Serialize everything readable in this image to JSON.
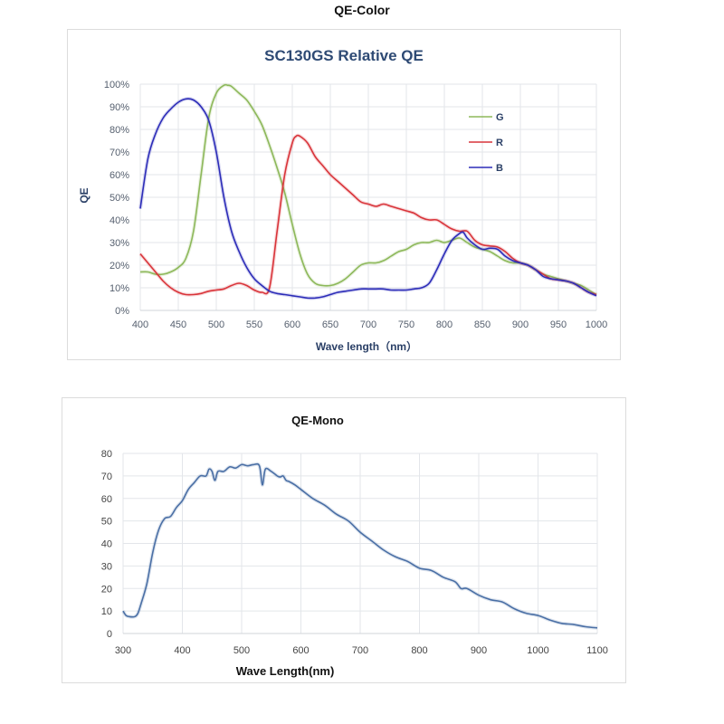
{
  "page": {
    "heading": "QE-Color"
  },
  "chart_data": [
    {
      "type": "line",
      "title": "SC130GS Relative QE",
      "xlabel": "Wave length（nm）",
      "ylabel": "QE",
      "xlim": [
        400,
        1000
      ],
      "ylim": [
        0,
        100
      ],
      "x_ticks": [
        "400",
        "450",
        "500",
        "550",
        "600",
        "650",
        "700",
        "750",
        "800",
        "850",
        "900",
        "950",
        "1000"
      ],
      "y_ticks": [
        "0%",
        "10%",
        "20%",
        "30%",
        "40%",
        "50%",
        "60%",
        "70%",
        "80%",
        "90%",
        "100%"
      ],
      "grid": true,
      "legend_position": "top-right",
      "series": [
        {
          "name": "G",
          "color": "#8db85a",
          "x": [
            400,
            410,
            420,
            430,
            440,
            450,
            460,
            470,
            480,
            490,
            500,
            510,
            515,
            520,
            530,
            540,
            550,
            560,
            570,
            580,
            590,
            600,
            610,
            620,
            630,
            640,
            650,
            660,
            670,
            680,
            690,
            700,
            710,
            720,
            730,
            740,
            750,
            760,
            770,
            780,
            790,
            800,
            810,
            820,
            830,
            840,
            850,
            860,
            870,
            880,
            890,
            900,
            910,
            920,
            930,
            940,
            950,
            960,
            970,
            980,
            990,
            1000
          ],
          "y": [
            17,
            17,
            16,
            16,
            17,
            19,
            23,
            35,
            60,
            85,
            96,
            99.5,
            99.5,
            99,
            96,
            93,
            88,
            82,
            73,
            63,
            52,
            38,
            25,
            16,
            12,
            11,
            11,
            12,
            14,
            17,
            20,
            21,
            21,
            22,
            24,
            26,
            27,
            29,
            30,
            30,
            31,
            30,
            31,
            32,
            30,
            28,
            27,
            26,
            24,
            22,
            21,
            21,
            20,
            18,
            16,
            15,
            14,
            13,
            12,
            11,
            9,
            7
          ]
        },
        {
          "name": "R",
          "color": "#d9343a",
          "x": [
            400,
            410,
            420,
            430,
            440,
            450,
            460,
            470,
            480,
            490,
            500,
            510,
            520,
            530,
            540,
            550,
            560,
            570,
            580,
            590,
            600,
            605,
            610,
            620,
            630,
            640,
            650,
            660,
            670,
            680,
            690,
            700,
            710,
            720,
            730,
            740,
            750,
            760,
            770,
            780,
            790,
            800,
            810,
            820,
            830,
            840,
            850,
            860,
            870,
            880,
            890,
            900,
            910,
            920,
            930,
            940,
            950,
            960,
            970,
            980,
            990,
            1000
          ],
          "y": [
            25,
            21,
            17,
            13,
            10,
            8,
            7,
            7,
            7.5,
            8.5,
            9,
            9.5,
            11,
            12,
            11,
            9,
            8,
            10,
            35,
            60,
            74,
            77,
            77,
            74,
            68,
            64,
            60,
            57,
            54,
            51,
            48,
            47,
            46,
            47,
            46,
            45,
            44,
            43,
            41,
            40,
            40,
            38,
            36,
            35,
            35,
            31,
            29,
            28.5,
            28,
            26,
            23,
            21,
            20,
            18,
            16,
            14,
            13.5,
            13,
            12,
            10,
            8,
            7
          ]
        },
        {
          "name": "B",
          "color": "#2c2cb8",
          "x": [
            400,
            410,
            420,
            430,
            440,
            450,
            460,
            470,
            480,
            490,
            500,
            510,
            520,
            530,
            540,
            550,
            560,
            570,
            580,
            590,
            600,
            610,
            620,
            630,
            640,
            650,
            660,
            670,
            680,
            690,
            700,
            710,
            720,
            730,
            740,
            750,
            760,
            770,
            780,
            790,
            800,
            810,
            820,
            825,
            830,
            840,
            850,
            860,
            870,
            880,
            890,
            900,
            910,
            920,
            930,
            940,
            950,
            960,
            970,
            980,
            990,
            1000
          ],
          "y": [
            45,
            67,
            78,
            85,
            89,
            92,
            93.5,
            93,
            90,
            84,
            70,
            50,
            35,
            26,
            19,
            14,
            11,
            8.5,
            7.5,
            7,
            6.5,
            6,
            5.5,
            5.5,
            6,
            7,
            8,
            8.5,
            9,
            9.5,
            9.5,
            9.5,
            9.5,
            9,
            9,
            9,
            9.5,
            10,
            12,
            18,
            25,
            31,
            34,
            34.5,
            32,
            29,
            27,
            27.5,
            27,
            24,
            22,
            21,
            20,
            18,
            15,
            14,
            13.5,
            13,
            12,
            10,
            8,
            6.5
          ]
        }
      ]
    },
    {
      "type": "line",
      "title": "QE-Mono",
      "xlabel": "Wave Length(nm)",
      "ylabel": "",
      "xlim": [
        300,
        1100
      ],
      "ylim": [
        0,
        80
      ],
      "x_ticks": [
        "300",
        "400",
        "500",
        "600",
        "700",
        "800",
        "900",
        "1000",
        "1100"
      ],
      "y_ticks": [
        "0",
        "10",
        "20",
        "30",
        "40",
        "50",
        "60",
        "70",
        "80"
      ],
      "grid": true,
      "legend_position": "none",
      "series": [
        {
          "name": "QE-Mono",
          "color": "#4a6fa5",
          "x": [
            300,
            305,
            310,
            320,
            325,
            330,
            340,
            350,
            360,
            370,
            380,
            390,
            400,
            410,
            420,
            430,
            440,
            445,
            450,
            455,
            460,
            470,
            480,
            490,
            500,
            510,
            520,
            530,
            535,
            540,
            550,
            560,
            565,
            570,
            575,
            580,
            590,
            600,
            620,
            640,
            660,
            680,
            700,
            720,
            740,
            760,
            780,
            800,
            820,
            840,
            860,
            870,
            880,
            900,
            920,
            940,
            960,
            980,
            1000,
            1020,
            1040,
            1060,
            1080,
            1100
          ],
          "y": [
            10,
            8,
            7.5,
            7.5,
            9,
            13,
            22,
            36,
            46,
            51,
            52,
            56,
            59,
            64,
            67,
            70,
            70,
            73,
            72,
            68,
            72,
            72,
            74,
            73.5,
            75,
            74.5,
            75,
            74.5,
            66,
            73,
            72,
            70,
            69.5,
            70,
            68,
            67.5,
            66,
            64,
            60,
            57,
            53,
            50,
            45,
            41,
            37,
            34,
            32,
            29,
            28,
            25,
            23,
            20,
            20,
            17,
            15,
            14,
            11,
            9,
            8,
            6,
            4.5,
            4,
            3,
            2.5
          ]
        }
      ]
    }
  ]
}
